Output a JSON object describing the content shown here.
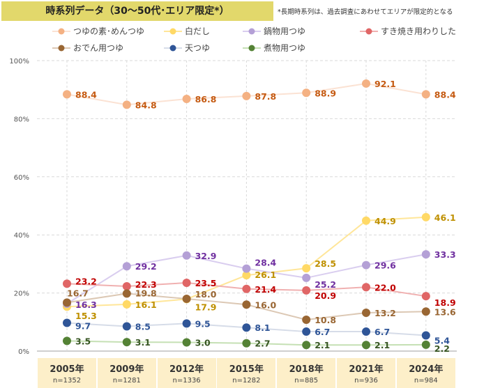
{
  "title": "時系列データ（30〜50代･エリア限定*）",
  "note": "*長期時系列は、過去調査にあわせてエリアが限定的となる",
  "chart_data": {
    "type": "line",
    "x": [
      "2005年",
      "2009年",
      "2012年",
      "2015年",
      "2018年",
      "2021年",
      "2024年"
    ],
    "n": [
      "n=1352",
      "n=1281",
      "n=1336",
      "n=1282",
      "n=885",
      "n=936",
      "n=984"
    ],
    "ylim": [
      0,
      100
    ],
    "yticks": [
      "0%",
      "20%",
      "40%",
      "60%",
      "80%",
      "100%"
    ],
    "grid": true,
    "legend_position": "top",
    "series": [
      {
        "name": "つゆの素･めんつゆ",
        "values": [
          88.4,
          84.8,
          86.8,
          87.8,
          88.9,
          92.1,
          88.4
        ],
        "color": "#f4b183",
        "line": "#fbe2d3",
        "label": "#c55a11"
      },
      {
        "name": "白だし",
        "values": [
          15.3,
          16.1,
          17.9,
          26.1,
          28.5,
          44.9,
          46.1
        ],
        "color": "#ffd966",
        "line": "#ffe699",
        "label": "#bf9000"
      },
      {
        "name": "鍋物用つゆ",
        "values": [
          16.3,
          29.2,
          32.9,
          28.4,
          25.2,
          29.6,
          33.3
        ],
        "color": "#b4a0d6",
        "line": "#d9cdef",
        "label": "#7030a0"
      },
      {
        "name": "すき焼き用わりした",
        "values": [
          23.2,
          22.3,
          23.5,
          21.4,
          20.9,
          22.0,
          18.9
        ],
        "color": "#e06666",
        "line": "#f0b0b0",
        "label": "#c00000"
      },
      {
        "name": "おでん用つゆ",
        "values": [
          16.7,
          19.8,
          18.0,
          16.0,
          10.8,
          13.2,
          13.6
        ],
        "color": "#996633",
        "line": "#dcc8b4",
        "label": "#996633"
      },
      {
        "name": "天つゆ",
        "values": [
          9.7,
          8.5,
          9.5,
          8.1,
          6.7,
          6.7,
          5.4
        ],
        "color": "#2f5597",
        "line": "#d6dce8",
        "label": "#2f5597"
      },
      {
        "name": "煮物用つゆ",
        "values": [
          3.5,
          3.1,
          3.0,
          2.7,
          2.1,
          2.1,
          2.2
        ],
        "color": "#548235",
        "line": "#c5e0b4",
        "label": "#375623"
      }
    ]
  }
}
